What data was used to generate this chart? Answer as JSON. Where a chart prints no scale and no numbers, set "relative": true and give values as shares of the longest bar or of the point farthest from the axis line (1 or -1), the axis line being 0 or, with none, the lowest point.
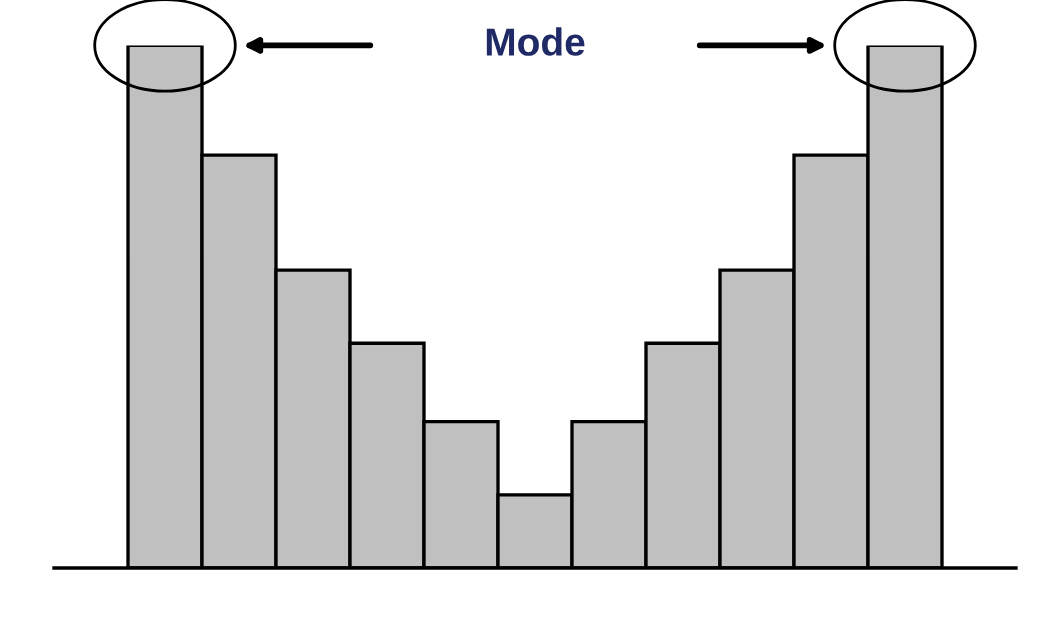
{
  "chart_data": {
    "type": "bar",
    "relative": true,
    "categories": [
      null,
      null,
      null,
      null,
      null,
      null,
      null,
      null,
      null,
      null,
      null
    ],
    "series": [
      {
        "color": "#c0c0c0",
        "values": [
          1,
          0.79,
          0.57,
          0.43,
          0.28,
          0.14,
          0.28,
          0.43,
          0.57,
          0.79,
          1
        ]
      }
    ],
    "annotations": [
      "Mode"
    ],
    "grid": false,
    "legend": false
  }
}
